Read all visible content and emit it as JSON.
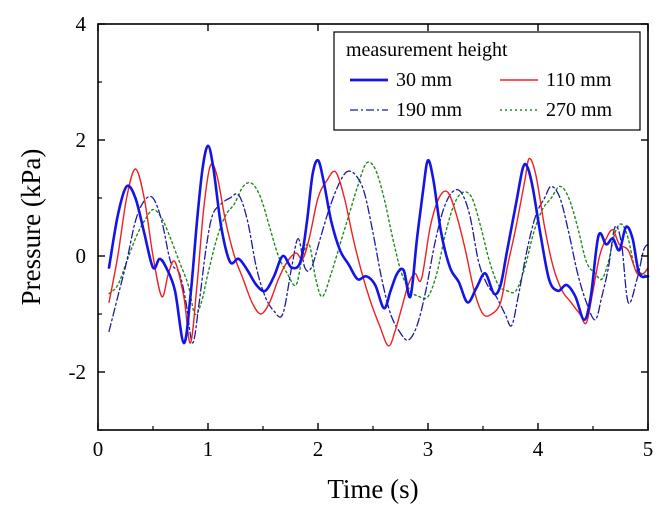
{
  "chart_data": {
    "type": "line",
    "xlabel": "Time (s)",
    "ylabel": "Pressure (kPa)",
    "xlim": [
      0,
      5
    ],
    "ylim": [
      -3,
      4
    ],
    "x_ticks": [
      0,
      1,
      2,
      3,
      4,
      5
    ],
    "x_tick_labels": [
      "0",
      "1",
      "2",
      "3",
      "4",
      "5"
    ],
    "y_ticks": [
      -2,
      0,
      2,
      4
    ],
    "y_tick_labels": [
      "-2",
      "0",
      "2",
      "4"
    ],
    "grid": false,
    "legend": {
      "title": "measurement height",
      "placement": "top-right"
    },
    "series": [
      {
        "name": "30 mm",
        "color": "#1414e6",
        "style": "solid",
        "points": [
          [
            0.1,
            -0.2
          ],
          [
            0.18,
            0.7
          ],
          [
            0.26,
            1.2
          ],
          [
            0.34,
            1.0
          ],
          [
            0.42,
            0.4
          ],
          [
            0.5,
            -0.2
          ],
          [
            0.56,
            -0.05
          ],
          [
            0.62,
            -0.2
          ],
          [
            0.7,
            -0.6
          ],
          [
            0.78,
            -1.5
          ],
          [
            0.84,
            -0.7
          ],
          [
            0.9,
            0.6
          ],
          [
            0.95,
            1.5
          ],
          [
            1.0,
            1.9
          ],
          [
            1.05,
            1.5
          ],
          [
            1.12,
            0.5
          ],
          [
            1.2,
            -0.1
          ],
          [
            1.28,
            -0.05
          ],
          [
            1.36,
            -0.25
          ],
          [
            1.44,
            -0.5
          ],
          [
            1.52,
            -0.6
          ],
          [
            1.6,
            -0.35
          ],
          [
            1.68,
            0.0
          ],
          [
            1.76,
            -0.2
          ],
          [
            1.84,
            -0.1
          ],
          [
            1.9,
            0.6
          ],
          [
            1.95,
            1.4
          ],
          [
            2.0,
            1.65
          ],
          [
            2.05,
            1.3
          ],
          [
            2.12,
            0.6
          ],
          [
            2.2,
            0.1
          ],
          [
            2.28,
            -0.15
          ],
          [
            2.36,
            -0.4
          ],
          [
            2.44,
            -0.35
          ],
          [
            2.52,
            -0.5
          ],
          [
            2.6,
            -0.9
          ],
          [
            2.66,
            -0.6
          ],
          [
            2.72,
            -0.3
          ],
          [
            2.78,
            -0.25
          ],
          [
            2.84,
            -0.7
          ],
          [
            2.9,
            0.3
          ],
          [
            2.96,
            1.2
          ],
          [
            3.0,
            1.65
          ],
          [
            3.05,
            1.3
          ],
          [
            3.12,
            0.4
          ],
          [
            3.2,
            -0.2
          ],
          [
            3.28,
            -0.45
          ],
          [
            3.36,
            -0.8
          ],
          [
            3.44,
            -0.55
          ],
          [
            3.52,
            -0.3
          ],
          [
            3.6,
            -0.65
          ],
          [
            3.66,
            -0.5
          ],
          [
            3.72,
            0.1
          ],
          [
            3.8,
            0.9
          ],
          [
            3.86,
            1.5
          ],
          [
            3.9,
            1.55
          ],
          [
            3.95,
            1.2
          ],
          [
            4.02,
            0.4
          ],
          [
            4.1,
            -0.4
          ],
          [
            4.18,
            -0.6
          ],
          [
            4.26,
            -0.5
          ],
          [
            4.34,
            -0.7
          ],
          [
            4.42,
            -1.1
          ],
          [
            4.48,
            -0.7
          ],
          [
            4.55,
            0.35
          ],
          [
            4.62,
            0.2
          ],
          [
            4.68,
            0.3
          ],
          [
            4.74,
            0.1
          ],
          [
            4.8,
            0.5
          ],
          [
            4.86,
            0.3
          ],
          [
            4.92,
            -0.3
          ],
          [
            5.0,
            -0.35
          ]
        ]
      },
      {
        "name": "110 mm",
        "color": "#f02020",
        "style": "solid",
        "points": [
          [
            0.1,
            -0.8
          ],
          [
            0.18,
            0.0
          ],
          [
            0.26,
            1.0
          ],
          [
            0.34,
            1.5
          ],
          [
            0.42,
            1.0
          ],
          [
            0.5,
            0.0
          ],
          [
            0.58,
            -0.7
          ],
          [
            0.64,
            -0.3
          ],
          [
            0.7,
            -0.1
          ],
          [
            0.78,
            -0.7
          ],
          [
            0.84,
            -1.5
          ],
          [
            0.9,
            -0.5
          ],
          [
            0.96,
            0.8
          ],
          [
            1.02,
            1.55
          ],
          [
            1.08,
            1.4
          ],
          [
            1.16,
            0.6
          ],
          [
            1.24,
            0.0
          ],
          [
            1.32,
            -0.4
          ],
          [
            1.4,
            -0.8
          ],
          [
            1.48,
            -1.0
          ],
          [
            1.56,
            -0.8
          ],
          [
            1.64,
            -0.4
          ],
          [
            1.72,
            -0.1
          ],
          [
            1.8,
            0.05
          ],
          [
            1.86,
            -0.05
          ],
          [
            1.92,
            0.3
          ],
          [
            2.0,
            1.0
          ],
          [
            2.08,
            1.3
          ],
          [
            2.16,
            1.45
          ],
          [
            2.24,
            1.0
          ],
          [
            2.32,
            0.3
          ],
          [
            2.4,
            -0.3
          ],
          [
            2.48,
            -0.8
          ],
          [
            2.56,
            -1.2
          ],
          [
            2.64,
            -1.55
          ],
          [
            2.7,
            -1.3
          ],
          [
            2.76,
            -0.9
          ],
          [
            2.82,
            -0.5
          ],
          [
            2.88,
            -0.3
          ],
          [
            2.94,
            -0.4
          ],
          [
            3.02,
            0.5
          ],
          [
            3.1,
            1.0
          ],
          [
            3.18,
            1.1
          ],
          [
            3.26,
            0.7
          ],
          [
            3.34,
            0.1
          ],
          [
            3.42,
            -0.6
          ],
          [
            3.5,
            -1.0
          ],
          [
            3.58,
            -1.0
          ],
          [
            3.66,
            -0.8
          ],
          [
            3.72,
            -0.2
          ],
          [
            3.8,
            0.5
          ],
          [
            3.88,
            1.3
          ],
          [
            3.92,
            1.68
          ],
          [
            3.98,
            1.4
          ],
          [
            4.06,
            0.5
          ],
          [
            4.14,
            -0.2
          ],
          [
            4.22,
            -0.6
          ],
          [
            4.3,
            -0.8
          ],
          [
            4.38,
            -1.0
          ],
          [
            4.44,
            -1.15
          ],
          [
            4.5,
            -0.6
          ],
          [
            4.56,
            0.0
          ],
          [
            4.62,
            0.3
          ],
          [
            4.68,
            0.45
          ],
          [
            4.74,
            0.2
          ],
          [
            4.82,
            0.1
          ],
          [
            4.9,
            -0.3
          ],
          [
            4.96,
            -0.3
          ],
          [
            5.0,
            -0.2
          ]
        ]
      },
      {
        "name": "190 mm",
        "color": "#1c1c9e",
        "style": "dashdot",
        "points": [
          [
            0.1,
            -1.3
          ],
          [
            0.18,
            -0.7
          ],
          [
            0.26,
            -0.1
          ],
          [
            0.34,
            0.6
          ],
          [
            0.42,
            0.95
          ],
          [
            0.5,
            1.0
          ],
          [
            0.58,
            0.6
          ],
          [
            0.66,
            -0.1
          ],
          [
            0.74,
            -0.3
          ],
          [
            0.8,
            -0.8
          ],
          [
            0.86,
            -1.5
          ],
          [
            0.92,
            -0.8
          ],
          [
            0.98,
            0.1
          ],
          [
            1.04,
            0.7
          ],
          [
            1.12,
            0.9
          ],
          [
            1.2,
            1.0
          ],
          [
            1.28,
            1.05
          ],
          [
            1.36,
            0.6
          ],
          [
            1.44,
            -0.2
          ],
          [
            1.52,
            -0.7
          ],
          [
            1.6,
            -0.95
          ],
          [
            1.68,
            -1.0
          ],
          [
            1.76,
            -0.2
          ],
          [
            1.82,
            0.3
          ],
          [
            1.88,
            -0.2
          ],
          [
            1.94,
            -0.2
          ],
          [
            2.02,
            0.3
          ],
          [
            2.1,
            0.8
          ],
          [
            2.18,
            1.2
          ],
          [
            2.26,
            1.45
          ],
          [
            2.34,
            1.4
          ],
          [
            2.42,
            1.1
          ],
          [
            2.5,
            0.4
          ],
          [
            2.58,
            -0.4
          ],
          [
            2.66,
            -1.0
          ],
          [
            2.74,
            -1.3
          ],
          [
            2.82,
            -1.45
          ],
          [
            2.9,
            -1.2
          ],
          [
            2.98,
            -0.6
          ],
          [
            3.06,
            0.2
          ],
          [
            3.14,
            0.8
          ],
          [
            3.22,
            1.1
          ],
          [
            3.3,
            1.1
          ],
          [
            3.38,
            0.7
          ],
          [
            3.46,
            -0.1
          ],
          [
            3.54,
            -0.5
          ],
          [
            3.62,
            -0.7
          ],
          [
            3.7,
            -1.0
          ],
          [
            3.76,
            -1.2
          ],
          [
            3.82,
            -0.7
          ],
          [
            3.9,
            0.1
          ],
          [
            3.98,
            0.7
          ],
          [
            4.06,
            1.0
          ],
          [
            4.12,
            1.2
          ],
          [
            4.2,
            1.0
          ],
          [
            4.28,
            0.4
          ],
          [
            4.36,
            -0.3
          ],
          [
            4.44,
            -0.8
          ],
          [
            4.52,
            -1.1
          ],
          [
            4.58,
            -0.7
          ],
          [
            4.64,
            -0.2
          ],
          [
            4.7,
            0.5
          ],
          [
            4.76,
            0.2
          ],
          [
            4.82,
            -0.8
          ],
          [
            4.9,
            -0.4
          ],
          [
            4.96,
            0.1
          ],
          [
            5.0,
            0.2
          ]
        ]
      },
      {
        "name": "270 mm",
        "color": "#1e8c1e",
        "style": "dotted",
        "points": [
          [
            0.1,
            -0.65
          ],
          [
            0.18,
            -0.5
          ],
          [
            0.26,
            -0.1
          ],
          [
            0.34,
            0.3
          ],
          [
            0.42,
            0.6
          ],
          [
            0.5,
            0.8
          ],
          [
            0.58,
            0.65
          ],
          [
            0.66,
            0.3
          ],
          [
            0.74,
            -0.1
          ],
          [
            0.82,
            -0.5
          ],
          [
            0.88,
            -1.0
          ],
          [
            0.94,
            -0.8
          ],
          [
            1.0,
            -0.3
          ],
          [
            1.08,
            0.3
          ],
          [
            1.16,
            0.7
          ],
          [
            1.24,
            0.9
          ],
          [
            1.32,
            1.2
          ],
          [
            1.4,
            1.25
          ],
          [
            1.48,
            1.0
          ],
          [
            1.56,
            0.5
          ],
          [
            1.64,
            0.0
          ],
          [
            1.72,
            -0.3
          ],
          [
            1.8,
            -0.5
          ],
          [
            1.86,
            0.0
          ],
          [
            1.92,
            0.2
          ],
          [
            1.98,
            -0.4
          ],
          [
            2.04,
            -0.7
          ],
          [
            2.12,
            -0.3
          ],
          [
            2.2,
            0.2
          ],
          [
            2.28,
            0.7
          ],
          [
            2.36,
            1.2
          ],
          [
            2.44,
            1.6
          ],
          [
            2.52,
            1.5
          ],
          [
            2.6,
            1.0
          ],
          [
            2.68,
            0.3
          ],
          [
            2.76,
            -0.3
          ],
          [
            2.84,
            -0.6
          ],
          [
            2.92,
            -0.7
          ],
          [
            3.0,
            -0.7
          ],
          [
            3.08,
            -0.3
          ],
          [
            3.16,
            0.4
          ],
          [
            3.24,
            0.9
          ],
          [
            3.32,
            1.1
          ],
          [
            3.4,
            1.0
          ],
          [
            3.48,
            0.5
          ],
          [
            3.56,
            -0.1
          ],
          [
            3.64,
            -0.5
          ],
          [
            3.72,
            -0.6
          ],
          [
            3.8,
            -0.6
          ],
          [
            3.88,
            -0.2
          ],
          [
            3.96,
            0.4
          ],
          [
            4.04,
            0.8
          ],
          [
            4.12,
            1.0
          ],
          [
            4.2,
            1.2
          ],
          [
            4.28,
            1.0
          ],
          [
            4.36,
            0.5
          ],
          [
            4.44,
            -0.1
          ],
          [
            4.52,
            -0.3
          ],
          [
            4.58,
            -0.4
          ],
          [
            4.64,
            -0.1
          ],
          [
            4.7,
            0.4
          ],
          [
            4.76,
            0.55
          ],
          [
            4.82,
            0.3
          ],
          [
            4.88,
            -0.2
          ],
          [
            4.94,
            -0.3
          ],
          [
            5.0,
            -0.35
          ]
        ]
      }
    ]
  }
}
